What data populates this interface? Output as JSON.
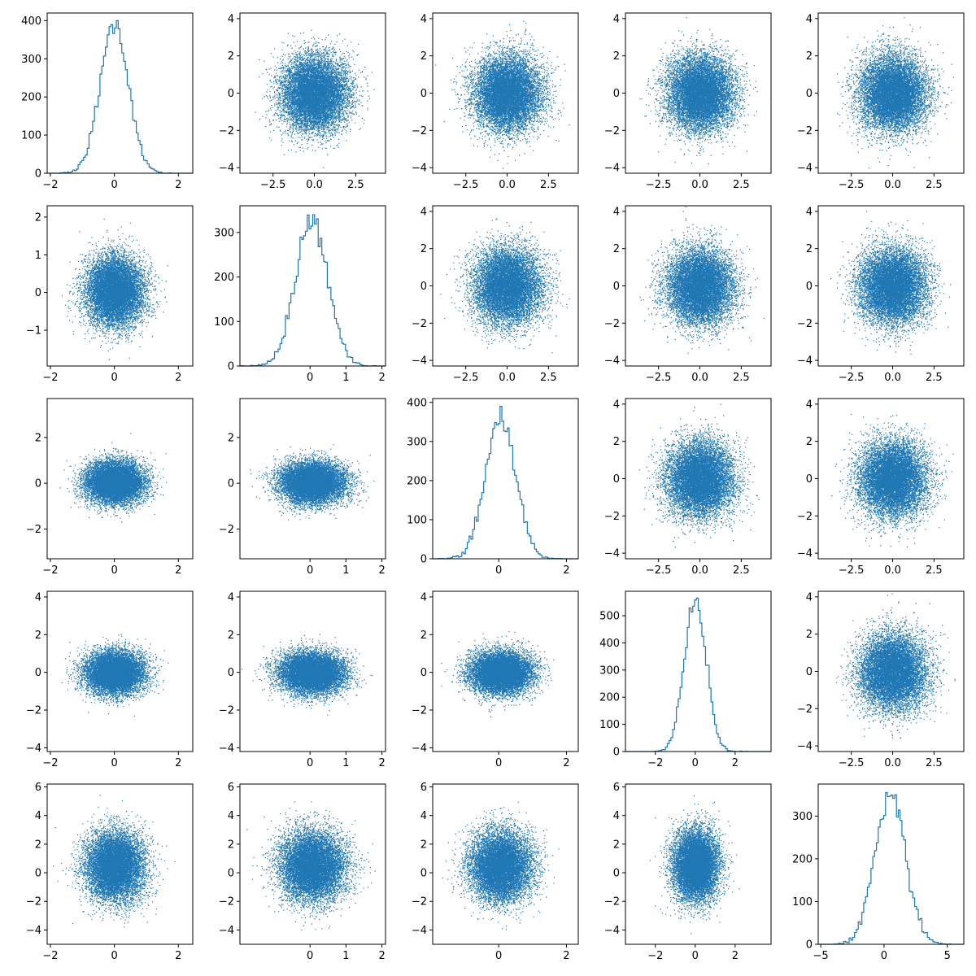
{
  "chart_data": {
    "type": "pairplot",
    "grid": {
      "rows": 5,
      "cols": 5
    },
    "color": "#1f77b4",
    "points_per_panel": 10000,
    "variables": [
      {
        "name": "",
        "xlim": [
          -2.1,
          2.45
        ],
        "x_ticks": [
          -2,
          0,
          2
        ],
        "x_tick_labels": [
          "−2",
          "0",
          "2"
        ],
        "scatter_ylim": [
          -2.0,
          2.1
        ],
        "scatter_y_ticks": [
          -1,
          0,
          1,
          2
        ],
        "scatter_y_tick_labels": [
          "−1",
          "0",
          "1",
          "2"
        ],
        "distribution": {
          "mean": 0.0,
          "sd": 0.45
        }
      },
      {
        "name": "",
        "xlim": [
          -1.95,
          2.1
        ],
        "x_ticks": [
          0,
          1,
          2
        ],
        "x_tick_labels": [
          "0",
          "1",
          "2"
        ],
        "scatter_ylim": [
          -1.95,
          2.3
        ],
        "scatter_y_ticks": [
          -1,
          0,
          1,
          2
        ],
        "scatter_y_tick_labels": [
          "−1",
          "0",
          "1",
          "2"
        ],
        "distribution": {
          "mean": 0.05,
          "sd": 0.45
        }
      },
      {
        "name": "",
        "xlim": [
          -1.95,
          2.35
        ],
        "x_ticks": [
          0,
          2
        ],
        "x_tick_labels": [
          "0",
          "2"
        ],
        "scatter_ylim": [
          -3.3,
          3.7
        ],
        "scatter_y_ticks": [
          -2,
          0,
          2
        ],
        "scatter_y_tick_labels": [
          "−2",
          "0",
          "2"
        ],
        "distribution": {
          "mean": 0.05,
          "sd": 0.45
        }
      },
      {
        "name": "",
        "xlim": [
          -3.5,
          3.8
        ],
        "x_ticks": [
          -2,
          0,
          2
        ],
        "x_tick_labels": [
          "−2",
          "0",
          "2"
        ],
        "scatter_ylim": [
          -4.2,
          4.3
        ],
        "scatter_y_ticks": [
          -4,
          -2,
          0,
          2,
          4
        ],
        "scatter_y_tick_labels": [
          "−4",
          "−2",
          "0",
          "2",
          "4"
        ],
        "distribution": {
          "mean": 0.0,
          "sd": 0.55
        }
      },
      {
        "name": "",
        "xlim": [
          -5.2,
          6.3
        ],
        "x_ticks": [
          -5,
          0,
          5
        ],
        "x_tick_labels": [
          "−5",
          "0",
          "5"
        ],
        "scatter_ylim": [
          -5.0,
          6.2
        ],
        "scatter_y_ticks": [
          -4,
          -2,
          0,
          2,
          4,
          6
        ],
        "scatter_y_tick_labels": [
          "−4",
          "−2",
          "0",
          "2",
          "4",
          "6"
        ],
        "distribution": {
          "mean": 0.5,
          "sd": 1.2
        }
      }
    ],
    "upper_scatter": {
      "xlim": [
        -4.5,
        4.3
      ],
      "x_ticks": [
        -2.5,
        0,
        2.5
      ],
      "x_tick_labels": [
        "−2.5",
        "0.0",
        "2.5"
      ],
      "ylim": [
        -4.3,
        4.3
      ],
      "y_ticks": [
        -4,
        -2,
        0,
        2,
        4
      ],
      "y_tick_labels": [
        "−4",
        "−2",
        "0",
        "2",
        "4"
      ],
      "distribution": {
        "sd": 1.0
      }
    },
    "histograms": [
      {
        "ylim": [
          0,
          420
        ],
        "y_ticks": [
          0,
          100,
          200,
          300,
          400
        ],
        "y_tick_labels": [
          "0",
          "100",
          "200",
          "300",
          "400"
        ],
        "peak": 400
      },
      {
        "ylim": [
          0,
          360
        ],
        "y_ticks": [
          0,
          100,
          200,
          300
        ],
        "y_tick_labels": [
          "0",
          "100",
          "200",
          "300"
        ],
        "peak": 340
      },
      {
        "ylim": [
          0,
          410
        ],
        "y_ticks": [
          0,
          100,
          200,
          300,
          400
        ],
        "y_tick_labels": [
          "0",
          "100",
          "200",
          "300",
          "400"
        ],
        "peak": 390
      },
      {
        "ylim": [
          0,
          590
        ],
        "y_ticks": [
          0,
          100,
          200,
          300,
          400,
          500
        ],
        "y_tick_labels": [
          "0",
          "100",
          "200",
          "300",
          "400",
          "500"
        ],
        "peak": 565
      },
      {
        "ylim": [
          0,
          375
        ],
        "y_ticks": [
          0,
          100,
          200,
          300
        ],
        "y_tick_labels": [
          "0",
          "100",
          "200",
          "300"
        ],
        "peak": 355
      }
    ]
  }
}
